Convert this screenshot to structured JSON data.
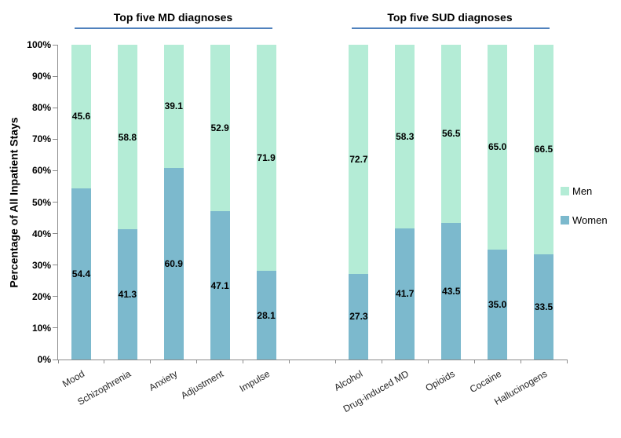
{
  "chart_data": {
    "type": "bar",
    "stacked": true,
    "group_labels": [
      "Top five MD diagnoses",
      "Top five SUD diagnoses"
    ],
    "group_split_index": 5,
    "categories": [
      "Mood",
      "Schizophrenia",
      "Anxiety",
      "Adjustment",
      "Impulse",
      "Alcohol",
      "Drug-induced MD",
      "Opioids",
      "Cocaine",
      "Hallucinogens"
    ],
    "series": [
      {
        "name": "Women",
        "color": "#7cb9cd",
        "values": [
          54.4,
          41.3,
          60.9,
          47.1,
          28.1,
          27.3,
          41.7,
          43.5,
          35.0,
          33.5
        ],
        "value_labels": [
          "54.4",
          "41.3",
          "60.9",
          "47.1",
          "28.1",
          "27.3",
          "41.7",
          "43.5",
          "35.0",
          "33.5"
        ]
      },
      {
        "name": "Men",
        "color": "#b4ecd6",
        "values": [
          45.6,
          58.8,
          39.1,
          52.9,
          71.9,
          72.7,
          58.3,
          56.5,
          65.0,
          66.5
        ],
        "value_labels": [
          "45.6",
          "58.8",
          "39.1",
          "52.9",
          "71.9",
          "72.7",
          "58.3",
          "56.5",
          "65.0",
          "66.5"
        ]
      }
    ],
    "ylabel": "Percentage of All Inpatient Stays",
    "xlabel": "",
    "ylim": [
      0,
      100
    ],
    "ytick_step": 10,
    "ytick_labels": [
      "0%",
      "10%",
      "20%",
      "30%",
      "40%",
      "50%",
      "60%",
      "70%",
      "80%",
      "90%",
      "100%"
    ],
    "grid": false,
    "legend_position": "right",
    "legend_order": [
      "Men",
      "Women"
    ],
    "underline_color": "#4f81bd",
    "axis_color": "#8c8c8c"
  }
}
